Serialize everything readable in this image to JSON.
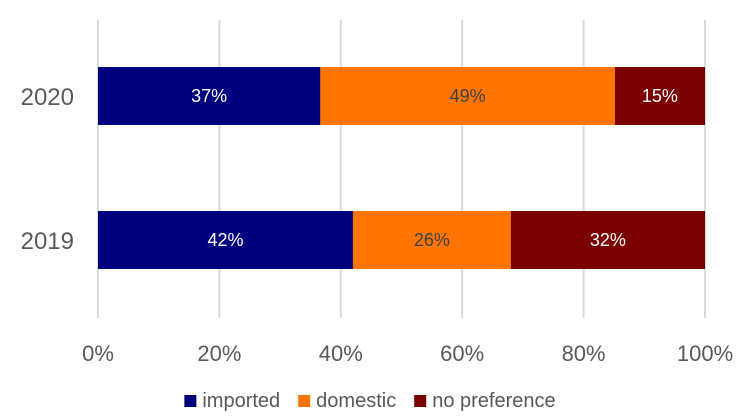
{
  "chart_data": {
    "type": "bar",
    "orientation": "horizontal",
    "stacked": "percent",
    "categories": [
      "2020",
      "2019"
    ],
    "series": [
      {
        "name": "imported",
        "values": [
          37,
          42
        ],
        "labels": [
          "37%",
          "42%"
        ],
        "color": "#00007f",
        "label_color": "#ffffff"
      },
      {
        "name": "domestic",
        "values": [
          49,
          26
        ],
        "labels": [
          "49%",
          "26%"
        ],
        "color": "#ff7500",
        "label_color": "#404040"
      },
      {
        "name": "no preference",
        "values": [
          15,
          32
        ],
        "labels": [
          "15%",
          "32%"
        ],
        "color": "#7b0000",
        "label_color": "#ffffff"
      }
    ],
    "xlim": [
      0,
      100
    ],
    "xticks": [
      "0%",
      "20%",
      "40%",
      "60%",
      "80%",
      "100%"
    ],
    "grid": true,
    "legend_position": "bottom",
    "title": "",
    "xlabel": "",
    "ylabel": ""
  },
  "colors": {
    "gridline": "#d9d9d9",
    "axis_text": "#595959"
  }
}
